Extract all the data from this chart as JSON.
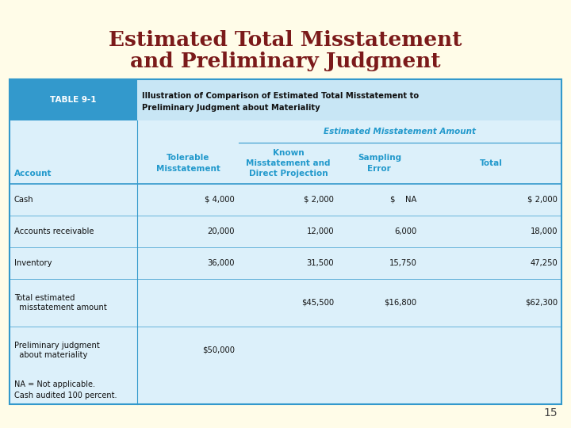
{
  "title_line1": "Estimated Total Misstatement",
  "title_line2": "and Preliminary Judgment",
  "title_color": "#7B1A1A",
  "bg_color": "#FFFCE8",
  "table_border_color": "#3399CC",
  "table_bg_header_dark": "#3399CC",
  "table_bg_header_light": "#C8E6F5",
  "table_bg_body": "#DCF0FA",
  "page_number": "15",
  "table_label": "TABLE 9-1",
  "table_title_line1": "Illustration of Comparison of Estimated Total Misstatement to",
  "table_title_line2": "Preliminary Judgment about Materiality",
  "col_header_estimated": "Estimated Misstatement Amount",
  "col_header_account": "Account",
  "col_header_tolerable": "Tolerable\nMisstatement",
  "col_header_known": "Known\nMisstatement and\nDirect Projection",
  "col_header_sampling": "Sampling\nError",
  "col_header_total": "Total",
  "rows": [
    [
      "Cash",
      "$ 4,000",
      "$ 2,000",
      "$    NA",
      "$ 2,000"
    ],
    [
      "Accounts receivable",
      "20,000",
      "12,000",
      "6,000",
      "18,000"
    ],
    [
      "Inventory",
      "36,000",
      "31,500",
      "15,750",
      "47,250"
    ],
    [
      "Total estimated\n  misstatement amount",
      "",
      "$45,500",
      "$16,800",
      "$62,300"
    ],
    [
      "Preliminary judgment\n  about materiality",
      "$50,000",
      "",
      "",
      ""
    ]
  ],
  "footnote1": "NA = Not applicable.",
  "footnote2": "Cash audited 100 percent.",
  "blue_text_color": "#2299CC",
  "dark_text": "#111111"
}
